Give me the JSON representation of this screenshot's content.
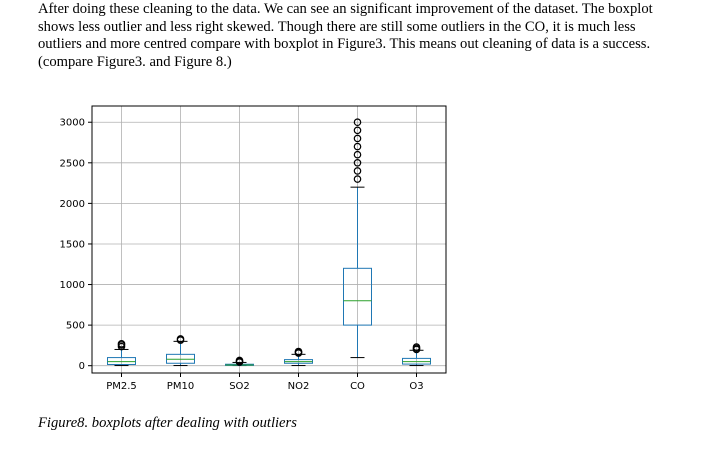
{
  "document": {
    "paragraph": "After doing these cleaning to the data. We can see an significant improvement of the dataset. The boxplot shows less outlier and less right skewed. Though there are still some outliers in the CO, it is much less outliers and more centred compare with boxplot in Figure3. This means out cleaning of data is a success. (compare Figure3. and Figure 8.)",
    "caption": "Figure8. boxplots after dealing with outliers"
  },
  "chart_data": {
    "type": "boxplot",
    "title": "",
    "xlabel": "",
    "ylabel": "",
    "ylim": [
      -90,
      3200
    ],
    "yticks": [
      0,
      500,
      1000,
      1500,
      2000,
      2500,
      3000
    ],
    "grid": true,
    "categories": [
      "PM2.5",
      "PM10",
      "SO2",
      "NO2",
      "CO",
      "O3"
    ],
    "boxes": [
      {
        "name": "PM2.5",
        "whisker_low": 2,
        "q1": 15,
        "median": 50,
        "q3": 100,
        "whisker_high": 200,
        "outliers": [
          235,
          255,
          270
        ]
      },
      {
        "name": "PM10",
        "whisker_low": 2,
        "q1": 30,
        "median": 80,
        "q3": 140,
        "whisker_high": 300,
        "outliers": [
          315,
          330
        ]
      },
      {
        "name": "SO2",
        "whisker_low": 2,
        "q1": 4,
        "median": 8,
        "q3": 18,
        "whisker_high": 40,
        "outliers": [
          45,
          55,
          65
        ]
      },
      {
        "name": "NO2",
        "whisker_low": 2,
        "q1": 30,
        "median": 50,
        "q3": 75,
        "whisker_high": 140,
        "outliers": [
          155,
          165,
          175
        ]
      },
      {
        "name": "CO",
        "whisker_low": 100,
        "q1": 500,
        "median": 800,
        "q3": 1200,
        "whisker_high": 2200,
        "outliers": [
          2300,
          2400,
          2500,
          2600,
          2700,
          2800,
          2900,
          3000
        ]
      },
      {
        "name": "O3",
        "whisker_low": 2,
        "q1": 20,
        "median": 50,
        "q3": 90,
        "whisker_high": 190,
        "outliers": [
          200,
          215,
          230
        ]
      }
    ],
    "colors": {
      "box": "#1f77b4",
      "median": "#2ca02c",
      "grid": "#b0b0b0",
      "axis": "#000000"
    }
  }
}
